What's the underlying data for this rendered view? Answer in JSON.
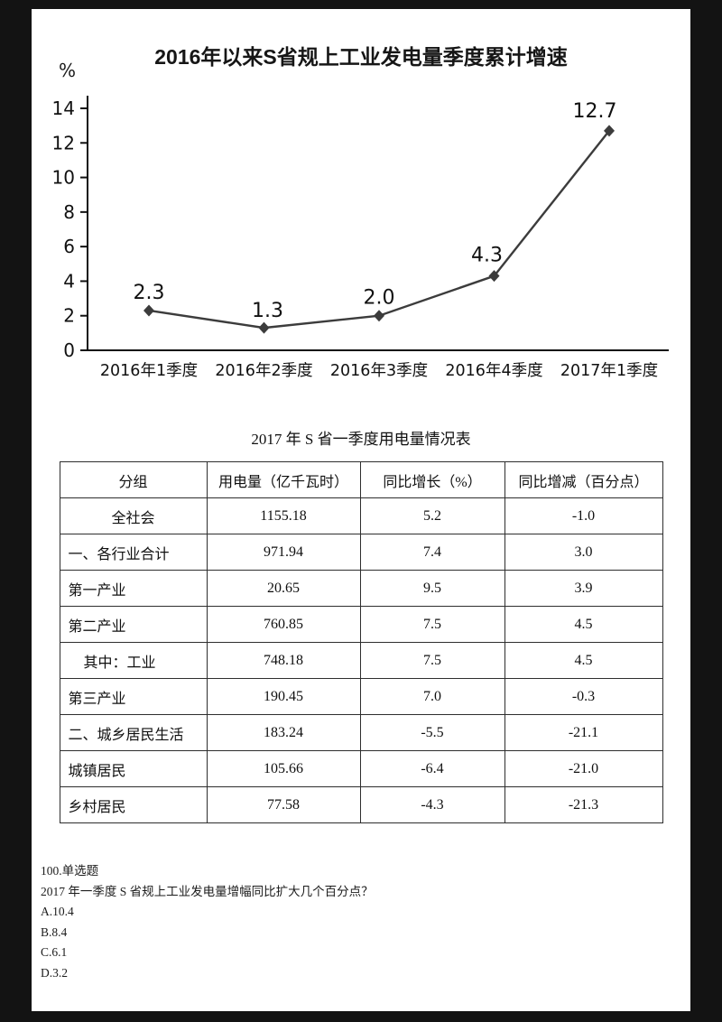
{
  "colors": {
    "frame_background": "#131313",
    "page_background": "#ffffff",
    "line": "#3c3c3c",
    "text": "#111111",
    "table_border": "#2e2e2e"
  },
  "chart_data": [
    {
      "type": "line",
      "title": "2016年以来S省规上工业发电量季度累计增速",
      "ylabel": "%",
      "xlabel": "",
      "categories": [
        "2016年1季度",
        "2016年2季度",
        "2016年3季度",
        "2016年4季度",
        "2017年1季度"
      ],
      "values": [
        2.3,
        1.3,
        2.0,
        4.3,
        12.7
      ],
      "data_labels": [
        "2.3",
        "1.3",
        "2.0",
        "4.3",
        "12.7"
      ],
      "y_ticks": [
        0,
        2,
        4,
        6,
        8,
        10,
        12,
        14
      ],
      "ylim": [
        0,
        14
      ],
      "grid": false,
      "legend": "none",
      "marker": "diamond",
      "line_color": "#3c3c3c"
    },
    {
      "type": "table",
      "title": "2017 年 S 省一季度用电量情况表",
      "headers": [
        "分组",
        "用电量（亿千瓦时）",
        "同比增长（%）",
        "同比增减（百分点）"
      ],
      "rows": [
        [
          "全社会",
          "1155.18",
          "5.2",
          "-1.0"
        ],
        [
          "一、各行业合计",
          "971.94",
          "7.4",
          "3.0"
        ],
        [
          "第一产业",
          "20.65",
          "9.5",
          "3.9"
        ],
        [
          "第二产业",
          "760.85",
          "7.5",
          "4.5"
        ],
        [
          "其中：工业",
          "748.18",
          "7.5",
          "4.5"
        ],
        [
          "第三产业",
          "190.45",
          "7.0",
          "-0.3"
        ],
        [
          "二、城乡居民生活",
          "183.24",
          "-5.5",
          "-21.1"
        ],
        [
          "城镇居民",
          "105.66",
          "-6.4",
          "-21.0"
        ],
        [
          "乡村居民",
          "77.58",
          "-4.3",
          "-21.3"
        ]
      ],
      "indent_rows": [
        4
      ],
      "center_rows": [
        0
      ]
    }
  ],
  "question": {
    "number_label": "100.单选题",
    "text": "2017 年一季度 S 省规上工业发电量增幅同比扩大几个百分点？",
    "options": [
      "A.10.4",
      "B.8.4",
      "C.6.1",
      "D.3.2"
    ]
  }
}
